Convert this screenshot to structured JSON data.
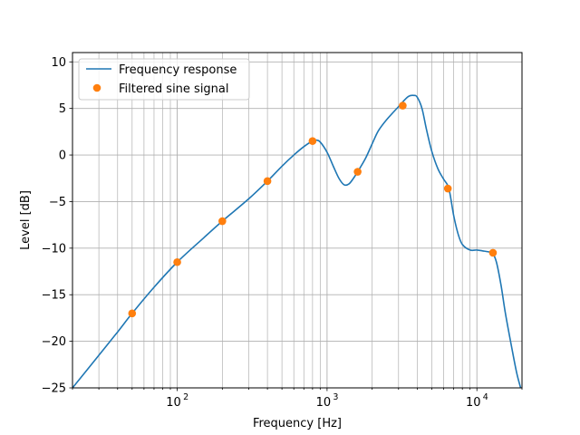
{
  "chart_data": {
    "type": "line",
    "xscale": "log",
    "xlabel": "Frequency [Hz]",
    "ylabel": "Level [dB]",
    "xlim": [
      20,
      20000
    ],
    "ylim": [
      -25,
      11
    ],
    "grid": "both (major and minor on x)",
    "legend_placement": "upper-left",
    "x_major_ticks": [
      100,
      1000,
      10000
    ],
    "x_tick_labels": [
      {
        "base": "10",
        "exp": "2"
      },
      {
        "base": "10",
        "exp": "3"
      },
      {
        "base": "10",
        "exp": "4"
      }
    ],
    "y_ticks": [
      10,
      5,
      0,
      -5,
      -10,
      -15,
      -20,
      -25
    ],
    "y_tick_labels": [
      "10",
      "5",
      "0",
      "−5",
      "−10",
      "−15",
      "−20",
      "−25"
    ],
    "series": [
      {
        "name": "Frequency response",
        "style": "line",
        "color": "#1f77b4",
        "x": [
          20,
          30,
          40,
          50,
          70,
          100,
          150,
          200,
          300,
          400,
          500,
          600,
          700,
          800,
          850,
          900,
          1000,
          1100,
          1200,
          1300,
          1400,
          1500,
          1600,
          1800,
          2000,
          2200,
          2500,
          3000,
          3200,
          3500,
          3800,
          4000,
          4300,
          4600,
          5000,
          5500,
          6000,
          6500,
          7000,
          7500,
          8000,
          9000,
          10000,
          11000,
          12000,
          12700,
          13500,
          14500,
          15500,
          17000,
          18500,
          20000
        ],
        "y": [
          -25.0,
          -21.5,
          -19.0,
          -17.0,
          -14.2,
          -11.5,
          -8.9,
          -7.1,
          -4.7,
          -2.8,
          -1.2,
          0.0,
          0.9,
          1.5,
          1.6,
          1.4,
          0.3,
          -1.2,
          -2.5,
          -3.2,
          -3.1,
          -2.5,
          -1.8,
          -0.4,
          1.2,
          2.6,
          3.8,
          5.2,
          5.7,
          6.3,
          6.4,
          6.2,
          5.0,
          2.8,
          0.4,
          -1.5,
          -2.6,
          -3.6,
          -6.5,
          -8.5,
          -9.6,
          -10.2,
          -10.2,
          -10.3,
          -10.4,
          -10.5,
          -11.5,
          -14.0,
          -17.0,
          -20.5,
          -23.5,
          -25.5
        ]
      },
      {
        "name": "Filtered sine signal",
        "style": "markers",
        "color": "#ff7f0e",
        "x": [
          50,
          100,
          200,
          400,
          800,
          1600,
          3200,
          6400,
          12800
        ],
        "y": [
          -17.0,
          -11.5,
          -7.1,
          -2.8,
          1.5,
          -1.8,
          5.3,
          -3.6,
          -10.5
        ]
      }
    ]
  }
}
